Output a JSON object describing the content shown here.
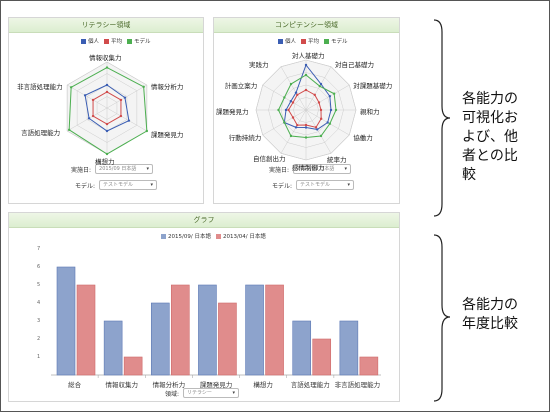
{
  "literacy": {
    "title": "リテラシー領域",
    "legend": [
      {
        "name": "個人",
        "color": "#3a5db3"
      },
      {
        "name": "平均",
        "color": "#d14b4b"
      },
      {
        "name": "モデル",
        "color": "#4caf50"
      }
    ],
    "axes": [
      "情報収集力",
      "情報分析力",
      "課題発見力",
      "構想力",
      "言語処理能力",
      "非言語処理能力"
    ],
    "form": {
      "date_label": "実施日:",
      "date_value": "2015/09 日本語",
      "model_label": "モデル:",
      "model_value": "テストモデル"
    }
  },
  "competency": {
    "title": "コンピテンシー領域",
    "legend": [
      {
        "name": "個人",
        "color": "#3a5db3"
      },
      {
        "name": "平均",
        "color": "#d14b4b"
      },
      {
        "name": "モデル",
        "color": "#4caf50"
      }
    ],
    "axes": [
      "対人基礎力",
      "対自己基礎力",
      "対課題基礎力",
      "親和力",
      "協働力",
      "統率力",
      "感情制御力",
      "自信創出力",
      "行動持続力",
      "課題発見力",
      "計画立案力",
      "実践力"
    ],
    "form": {
      "date_label": "実施日:",
      "date_value": "2015/09 日本語",
      "model_label": "モデル:",
      "model_value": "テストモデル"
    }
  },
  "graph": {
    "title": "グラフ",
    "legend": [
      {
        "name": "2015/09/ 日本語",
        "color": "#8da3cc"
      },
      {
        "name": "2013/04/ 日本語",
        "color": "#e08c8c"
      }
    ],
    "field_label": "領域:",
    "field_value": "リテラシー"
  },
  "chart_data": {
    "type": "bar",
    "categories": [
      "総合",
      "情報収集力",
      "情報分析力",
      "課題発見力",
      "構想力",
      "言語処理能力",
      "非言語処理能力"
    ],
    "series": [
      {
        "name": "2015/09/ 日本語",
        "values": [
          6,
          3,
          4,
          5,
          5,
          3,
          3
        ]
      },
      {
        "name": "2013/04/ 日本語",
        "values": [
          5,
          1,
          5,
          4,
          5,
          2,
          1
        ]
      }
    ],
    "yticks": [
      "1",
      "2",
      "3",
      "4",
      "5",
      "6",
      "7"
    ],
    "ylim": [
      0,
      7
    ]
  },
  "callouts": {
    "top": [
      "各能力の",
      "可視化お",
      "よび、他",
      "者との比",
      "較"
    ],
    "bottom": [
      "各能力の",
      "年度比較"
    ]
  }
}
